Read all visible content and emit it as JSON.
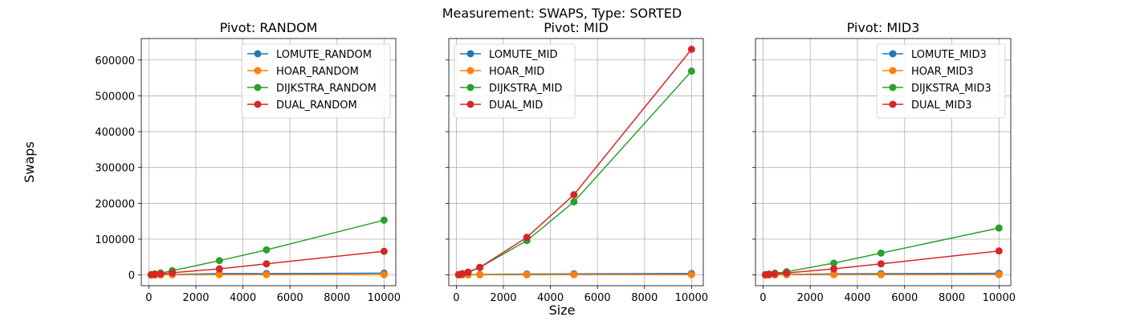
{
  "suptitle": "Measurement: SWAPS, Type: SORTED",
  "xlabel": "Size",
  "ylabel": "Swaps",
  "chart_data": [
    {
      "type": "line",
      "title": "Pivot: RANDOM",
      "x": [
        100,
        250,
        500,
        1000,
        3000,
        5000,
        10000
      ],
      "xlim": [
        -320,
        10500
      ],
      "ylim": [
        -30000,
        660000
      ],
      "xticks": [
        0,
        2000,
        4000,
        6000,
        8000,
        10000
      ],
      "yticks": [
        0,
        100000,
        200000,
        300000,
        400000,
        500000,
        600000
      ],
      "grid": true,
      "legend_position": "top-right",
      "series": [
        {
          "name": "LOMUTE_RANDOM",
          "color": "#1f77b4",
          "values": [
            100,
            300,
            600,
            1300,
            3800,
            3800,
            5000
          ]
        },
        {
          "name": "HOAR_RANDOM",
          "color": "#ff7f0e",
          "values": [
            50,
            100,
            200,
            400,
            800,
            800,
            800
          ]
        },
        {
          "name": "DIJKSTRA_RANDOM",
          "color": "#2ca02c",
          "values": [
            1200,
            3000,
            5500,
            12000,
            40000,
            70000,
            153000
          ]
        },
        {
          "name": "DUAL_RANDOM",
          "color": "#d62728",
          "values": [
            600,
            1500,
            3000,
            6000,
            17000,
            31000,
            66000
          ]
        }
      ]
    },
    {
      "type": "line",
      "title": "Pivot: MID",
      "x": [
        100,
        250,
        500,
        1000,
        3000,
        5000,
        10000
      ],
      "xlim": [
        -320,
        10500
      ],
      "ylim": [
        -30000,
        660000
      ],
      "xticks": [
        0,
        2000,
        4000,
        6000,
        8000,
        10000
      ],
      "yticks": [
        0,
        100000,
        200000,
        300000,
        400000,
        500000,
        600000
      ],
      "grid": true,
      "legend_position": "top-left",
      "series": [
        {
          "name": "LOMUTE_MID",
          "color": "#1f77b4",
          "values": [
            100,
            300,
            600,
            1300,
            2500,
            3000,
            4000
          ]
        },
        {
          "name": "HOAR_MID",
          "color": "#ff7f0e",
          "values": [
            50,
            100,
            200,
            400,
            500,
            600,
            800
          ]
        },
        {
          "name": "DIJKSTRA_MID",
          "color": "#2ca02c",
          "values": [
            1000,
            3000,
            7000,
            21000,
            96000,
            204000,
            569000
          ]
        },
        {
          "name": "DUAL_MID",
          "color": "#d62728",
          "values": [
            1200,
            3500,
            8000,
            21000,
            105000,
            224000,
            630000
          ]
        }
      ]
    },
    {
      "type": "line",
      "title": "Pivot: MID3",
      "x": [
        100,
        250,
        500,
        1000,
        3000,
        5000,
        10000
      ],
      "xlim": [
        -320,
        10500
      ],
      "ylim": [
        -30000,
        660000
      ],
      "xticks": [
        0,
        2000,
        4000,
        6000,
        8000,
        10000
      ],
      "yticks": [
        0,
        100000,
        200000,
        300000,
        400000,
        500000,
        600000
      ],
      "grid": true,
      "legend_position": "top-right",
      "series": [
        {
          "name": "LOMUTE_MID3",
          "color": "#1f77b4",
          "values": [
            100,
            300,
            600,
            1300,
            3000,
            3500,
            4500
          ]
        },
        {
          "name": "HOAR_MID3",
          "color": "#ff7f0e",
          "values": [
            50,
            100,
            200,
            400,
            600,
            700,
            800
          ]
        },
        {
          "name": "DIJKSTRA_MID3",
          "color": "#2ca02c",
          "values": [
            1000,
            2500,
            5000,
            9000,
            33000,
            61000,
            131000
          ]
        },
        {
          "name": "DUAL_MID3",
          "color": "#d62728",
          "values": [
            500,
            1500,
            3000,
            5500,
            17000,
            31000,
            67000
          ]
        }
      ]
    }
  ]
}
